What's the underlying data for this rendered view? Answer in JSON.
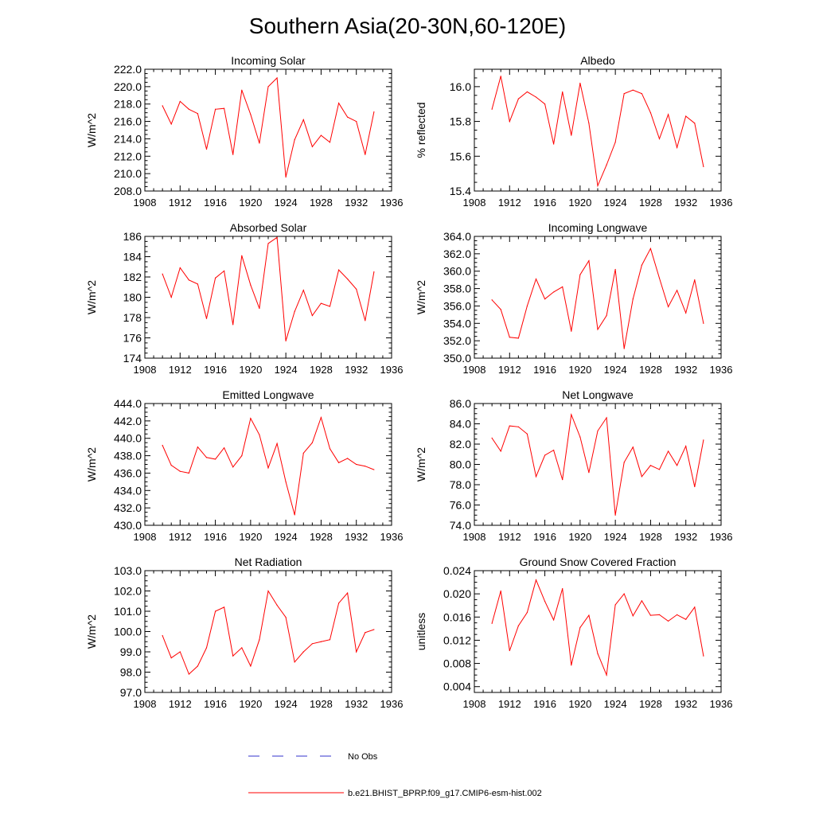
{
  "figure": {
    "title": "Southern Asia(20-30N,60-120E)",
    "line_color": "#ff0000",
    "obs_color": "#3333cc",
    "legend": [
      {
        "label": "No Obs",
        "style": "dashed",
        "color": "#3333cc"
      },
      {
        "label": "b.e21.BHIST_BPRP.f09_g17.CMIP6-esm-hist.002",
        "style": "solid",
        "color": "#ff0000"
      }
    ]
  },
  "chart_data": [
    {
      "type": "line",
      "title": "Incoming Solar",
      "xlabel": "",
      "ylabel": "W/m^2",
      "xlim": [
        1908,
        1936
      ],
      "ylim": [
        208,
        222
      ],
      "xticks": [
        1908,
        1912,
        1916,
        1920,
        1924,
        1928,
        1932,
        1936
      ],
      "yticks": [
        208,
        210,
        212,
        214,
        216,
        218,
        220,
        222
      ],
      "ytick_labels": [
        "208.0",
        "210.0",
        "212.0",
        "214.0",
        "216.0",
        "218.0",
        "220.0",
        "222.0"
      ],
      "x": [
        1910,
        1911,
        1912,
        1913,
        1914,
        1915,
        1916,
        1917,
        1918,
        1919,
        1920,
        1921,
        1922,
        1923,
        1924,
        1925,
        1926,
        1927,
        1928,
        1929,
        1930,
        1931,
        1932,
        1933,
        1934
      ],
      "series": [
        {
          "name": "b.e21.BHIST_BPRP.f09_g17.CMIP6-esm-hist.002",
          "values": [
            217.8,
            215.7,
            218.3,
            217.4,
            216.9,
            212.8,
            217.4,
            217.5,
            212.2,
            219.6,
            216.8,
            213.5,
            220.0,
            221.0,
            209.6,
            213.9,
            216.2,
            213.1,
            214.4,
            213.6,
            218.1,
            216.5,
            216.0,
            212.2,
            217.1
          ]
        }
      ]
    },
    {
      "type": "line",
      "title": "Albedo",
      "xlabel": "",
      "ylabel": "% reflected",
      "xlim": [
        1908,
        1936
      ],
      "ylim": [
        15.4,
        16.1
      ],
      "xticks": [
        1908,
        1912,
        1916,
        1920,
        1924,
        1928,
        1932,
        1936
      ],
      "yticks": [
        15.4,
        15.6,
        15.8,
        16.0
      ],
      "ytick_labels": [
        "15.4",
        "15.6",
        "15.8",
        "16.0"
      ],
      "x": [
        1910,
        1911,
        1912,
        1913,
        1914,
        1915,
        1916,
        1917,
        1918,
        1919,
        1920,
        1921,
        1922,
        1923,
        1924,
        1925,
        1926,
        1927,
        1928,
        1929,
        1930,
        1931,
        1932,
        1933,
        1934
      ],
      "series": [
        {
          "name": "b.e21.BHIST_BPRP.f09_g17.CMIP6-esm-hist.002",
          "values": [
            15.87,
            16.06,
            15.8,
            15.93,
            15.97,
            15.94,
            15.9,
            15.67,
            15.97,
            15.72,
            16.02,
            15.79,
            15.43,
            15.55,
            15.68,
            15.96,
            15.98,
            15.96,
            15.85,
            15.7,
            15.84,
            15.65,
            15.83,
            15.79,
            15.54
          ]
        }
      ]
    },
    {
      "type": "line",
      "title": "Absorbed Solar",
      "xlabel": "",
      "ylabel": "W/m^2",
      "xlim": [
        1908,
        1936
      ],
      "ylim": [
        174,
        186
      ],
      "xticks": [
        1908,
        1912,
        1916,
        1920,
        1924,
        1928,
        1932,
        1936
      ],
      "yticks": [
        174,
        176,
        178,
        180,
        182,
        184,
        186
      ],
      "ytick_labels": [
        "174",
        "176",
        "178",
        "180",
        "182",
        "184",
        "186"
      ],
      "x": [
        1910,
        1911,
        1912,
        1913,
        1914,
        1915,
        1916,
        1917,
        1918,
        1919,
        1920,
        1921,
        1922,
        1923,
        1924,
        1925,
        1926,
        1927,
        1928,
        1929,
        1930,
        1931,
        1932,
        1933,
        1934
      ],
      "series": [
        {
          "name": "b.e21.BHIST_BPRP.f09_g17.CMIP6-esm-hist.002",
          "values": [
            182.3,
            180.0,
            182.9,
            181.7,
            181.3,
            177.9,
            181.9,
            182.6,
            177.3,
            184.1,
            181.2,
            178.9,
            185.3,
            185.9,
            175.7,
            178.6,
            180.7,
            178.2,
            179.4,
            179.1,
            182.7,
            181.8,
            180.8,
            177.7,
            182.5
          ]
        }
      ]
    },
    {
      "type": "line",
      "title": "Incoming Longwave",
      "xlabel": "",
      "ylabel": "W/m^2",
      "xlim": [
        1908,
        1936
      ],
      "ylim": [
        350,
        364
      ],
      "xticks": [
        1908,
        1912,
        1916,
        1920,
        1924,
        1928,
        1932,
        1936
      ],
      "yticks": [
        350,
        352,
        354,
        356,
        358,
        360,
        362,
        364
      ],
      "ytick_labels": [
        "350.0",
        "352.0",
        "354.0",
        "356.0",
        "358.0",
        "360.0",
        "362.0",
        "364.0"
      ],
      "x": [
        1910,
        1911,
        1912,
        1913,
        1914,
        1915,
        1916,
        1917,
        1918,
        1919,
        1920,
        1921,
        1922,
        1923,
        1924,
        1925,
        1926,
        1927,
        1928,
        1929,
        1930,
        1931,
        1932,
        1933,
        1934
      ],
      "series": [
        {
          "name": "b.e21.BHIST_BPRP.f09_g17.CMIP6-esm-hist.002",
          "values": [
            356.7,
            355.6,
            352.4,
            352.3,
            356.0,
            359.1,
            356.8,
            357.6,
            358.2,
            353.1,
            359.6,
            361.2,
            353.3,
            354.9,
            360.2,
            351.1,
            356.8,
            360.7,
            362.6,
            359.2,
            355.9,
            357.8,
            355.2,
            359.0,
            354.0
          ]
        }
      ]
    },
    {
      "type": "line",
      "title": "Emitted Longwave",
      "xlabel": "",
      "ylabel": "W/m^2",
      "xlim": [
        1908,
        1936
      ],
      "ylim": [
        430,
        444
      ],
      "xticks": [
        1908,
        1912,
        1916,
        1920,
        1924,
        1928,
        1932,
        1936
      ],
      "yticks": [
        430,
        432,
        434,
        436,
        438,
        440,
        442,
        444
      ],
      "ytick_labels": [
        "430.0",
        "432.0",
        "434.0",
        "436.0",
        "438.0",
        "440.0",
        "442.0",
        "444.0"
      ],
      "x": [
        1910,
        1911,
        1912,
        1913,
        1914,
        1915,
        1916,
        1917,
        1918,
        1919,
        1920,
        1921,
        1922,
        1923,
        1924,
        1925,
        1926,
        1927,
        1928,
        1929,
        1930,
        1931,
        1932,
        1933,
        1934
      ],
      "series": [
        {
          "name": "b.e21.BHIST_BPRP.f09_g17.CMIP6-esm-hist.002",
          "values": [
            439.2,
            436.9,
            436.2,
            436.0,
            439.0,
            437.8,
            437.6,
            438.9,
            436.7,
            438.0,
            442.3,
            440.4,
            436.6,
            439.4,
            435.0,
            431.2,
            438.3,
            439.5,
            442.4,
            438.8,
            437.2,
            437.7,
            437.0,
            436.8,
            436.4
          ]
        }
      ]
    },
    {
      "type": "line",
      "title": "Net Longwave",
      "xlabel": "",
      "ylabel": "W/m^2",
      "xlim": [
        1908,
        1936
      ],
      "ylim": [
        74,
        86
      ],
      "xticks": [
        1908,
        1912,
        1916,
        1920,
        1924,
        1928,
        1932,
        1936
      ],
      "yticks": [
        74,
        76,
        78,
        80,
        82,
        84,
        86
      ],
      "ytick_labels": [
        "74.0",
        "76.0",
        "78.0",
        "80.0",
        "82.0",
        "84.0",
        "86.0"
      ],
      "x": [
        1910,
        1911,
        1912,
        1913,
        1914,
        1915,
        1916,
        1917,
        1918,
        1919,
        1920,
        1921,
        1922,
        1923,
        1924,
        1925,
        1926,
        1927,
        1928,
        1929,
        1930,
        1931,
        1932,
        1933,
        1934
      ],
      "series": [
        {
          "name": "b.e21.BHIST_BPRP.f09_g17.CMIP6-esm-hist.002",
          "values": [
            82.6,
            81.3,
            83.8,
            83.7,
            83.0,
            78.8,
            80.9,
            81.4,
            78.5,
            84.9,
            82.7,
            79.2,
            83.3,
            84.6,
            75.0,
            80.2,
            81.7,
            78.8,
            79.9,
            79.5,
            81.3,
            79.9,
            81.8,
            77.8,
            82.4
          ]
        }
      ]
    },
    {
      "type": "line",
      "title": "Net Radiation",
      "xlabel": "",
      "ylabel": "W/m^2",
      "xlim": [
        1908,
        1936
      ],
      "ylim": [
        97,
        103
      ],
      "xticks": [
        1908,
        1912,
        1916,
        1920,
        1924,
        1928,
        1932,
        1936
      ],
      "yticks": [
        97,
        98,
        99,
        100,
        101,
        102,
        103
      ],
      "ytick_labels": [
        "97.0",
        "98.0",
        "99.0",
        "100.0",
        "101.0",
        "102.0",
        "103.0"
      ],
      "x": [
        1910,
        1911,
        1912,
        1913,
        1914,
        1915,
        1916,
        1917,
        1918,
        1919,
        1920,
        1921,
        1922,
        1923,
        1924,
        1925,
        1926,
        1927,
        1928,
        1929,
        1930,
        1931,
        1932,
        1933,
        1934
      ],
      "series": [
        {
          "name": "b.e21.BHIST_BPRP.f09_g17.CMIP6-esm-hist.002",
          "values": [
            99.8,
            98.7,
            99.0,
            97.9,
            98.3,
            99.2,
            101.0,
            101.2,
            98.8,
            99.2,
            98.3,
            99.6,
            102.0,
            101.3,
            100.7,
            98.5,
            99.0,
            99.4,
            99.5,
            99.6,
            101.4,
            101.9,
            99.0,
            99.95,
            100.1
          ]
        }
      ]
    },
    {
      "type": "line",
      "title": "Ground Snow Covered Fraction",
      "xlabel": "",
      "ylabel": "unitless",
      "xlim": [
        1908,
        1936
      ],
      "ylim": [
        0.003,
        0.024
      ],
      "xticks": [
        1908,
        1912,
        1916,
        1920,
        1924,
        1928,
        1932,
        1936
      ],
      "yticks": [
        0.004,
        0.008,
        0.012,
        0.016,
        0.02,
        0.024
      ],
      "ytick_labels": [
        "0.004",
        "0.008",
        "0.012",
        "0.016",
        "0.020",
        "0.024"
      ],
      "x": [
        1910,
        1911,
        1912,
        1913,
        1914,
        1915,
        1916,
        1917,
        1918,
        1919,
        1920,
        1921,
        1922,
        1923,
        1924,
        1925,
        1926,
        1927,
        1928,
        1929,
        1930,
        1931,
        1932,
        1933,
        1934
      ],
      "series": [
        {
          "name": "b.e21.BHIST_BPRP.f09_g17.CMIP6-esm-hist.002",
          "values": [
            0.0149,
            0.0205,
            0.0102,
            0.0145,
            0.0168,
            0.0224,
            0.0187,
            0.0155,
            0.0209,
            0.0077,
            0.0142,
            0.0163,
            0.0097,
            0.006,
            0.0181,
            0.02,
            0.0162,
            0.0188,
            0.0163,
            0.0164,
            0.0153,
            0.0164,
            0.0156,
            0.0177,
            0.0093
          ]
        }
      ]
    }
  ]
}
